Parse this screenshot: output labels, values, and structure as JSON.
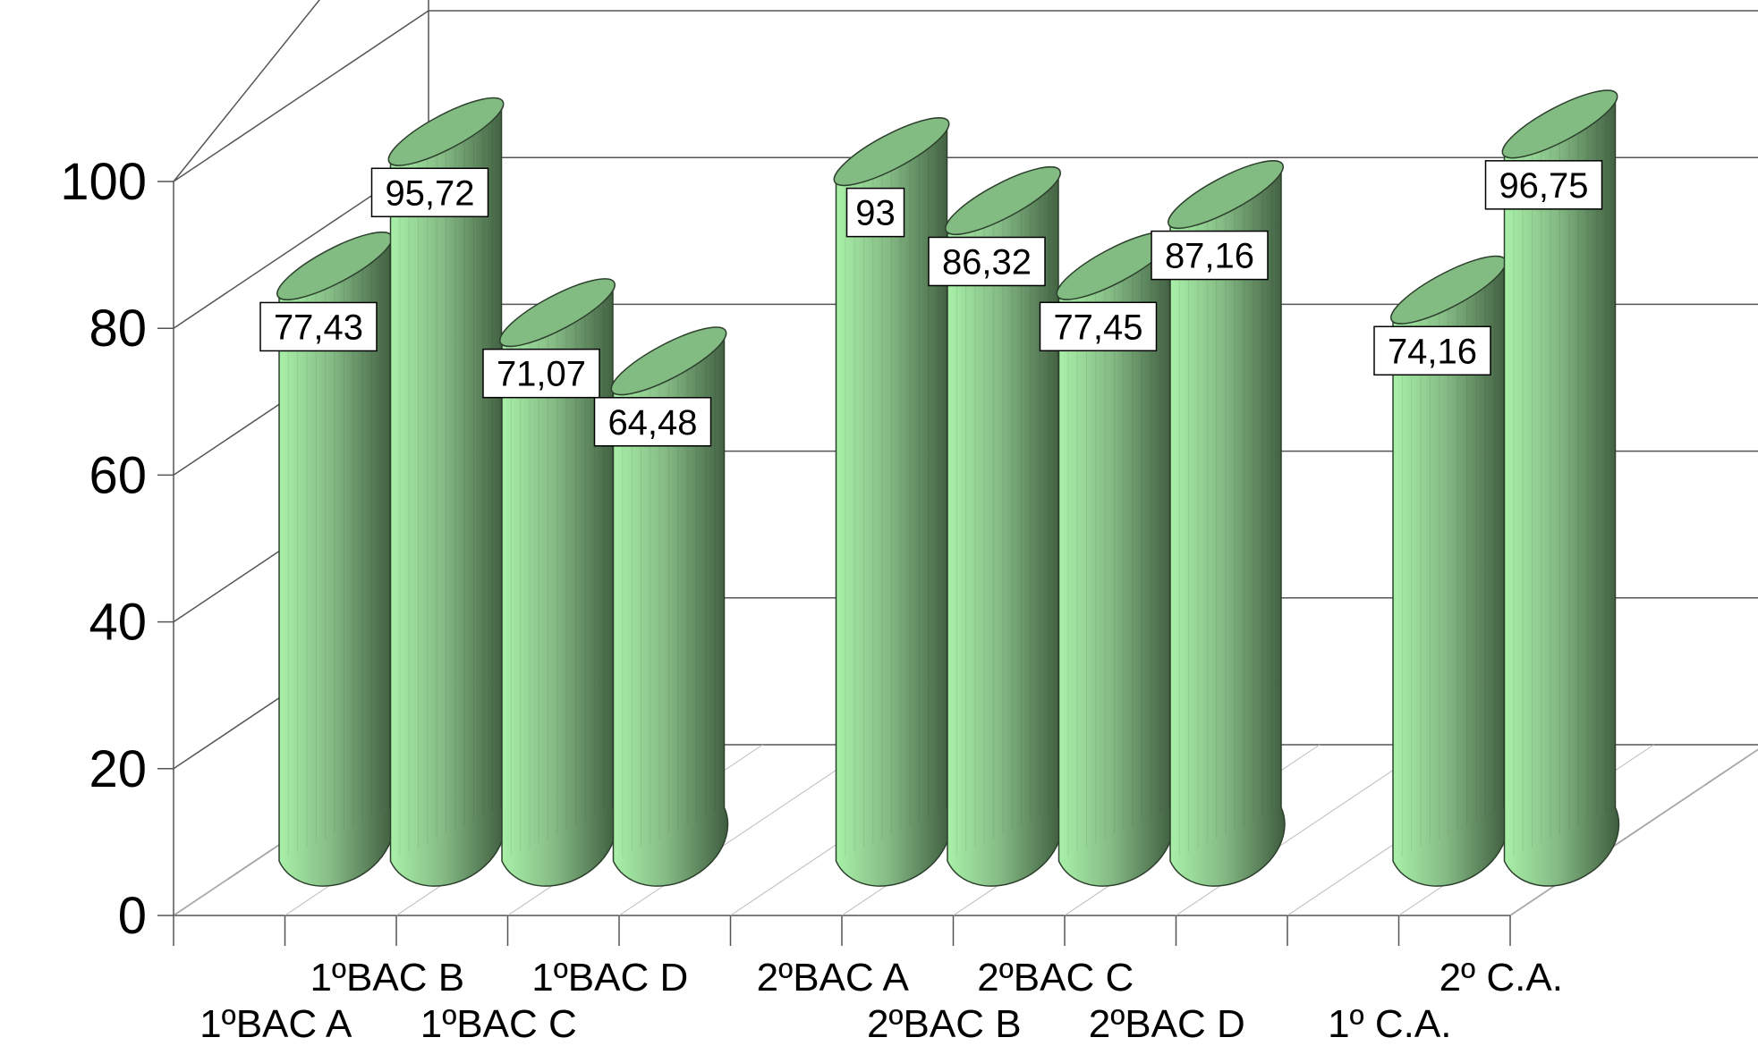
{
  "chart_data": {
    "type": "bar",
    "style": "3d-cylinder",
    "title": "",
    "xlabel": "",
    "ylabel": "",
    "ylim": [
      0,
      100
    ],
    "y_ticks": [
      "0",
      "20",
      "40",
      "60",
      "80",
      "100"
    ],
    "grid": true,
    "legend": "none",
    "categories": [
      "1ºBAC A",
      "1ºBAC B",
      "1ºBAC C",
      "1ºBAC D",
      "",
      "2ºBAC A",
      "2ºBAC B",
      "2ºBAC C",
      "2ºBAC D",
      "",
      "1º C.A.",
      "2º C.A."
    ],
    "values": [
      77.43,
      95.72,
      71.07,
      64.48,
      null,
      93,
      86.32,
      77.45,
      87.16,
      null,
      74.16,
      96.75
    ],
    "data_labels": [
      "77,43",
      "95,72",
      "71,07",
      "64,48",
      "",
      "93",
      "86,32",
      "77,45",
      "87,16",
      "",
      "74,16",
      "96,75"
    ],
    "colors": {
      "bar_light": "#a8f0a8",
      "bar_mid": "#86bc86",
      "bar_dark": "#3f5d3f",
      "top": "#82bc82"
    }
  }
}
